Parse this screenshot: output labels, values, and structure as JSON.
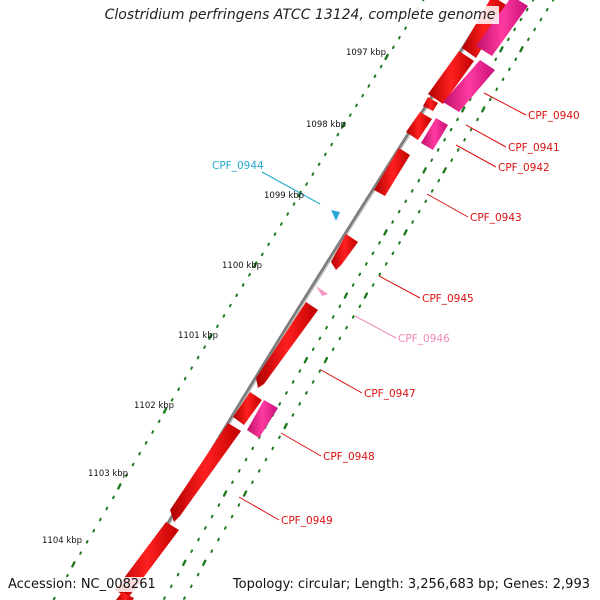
{
  "title": "Clostridium perfringens ATCC 13124, complete genome",
  "footer": {
    "accession": "Accession: NC_008261",
    "stats": "Topology: circular; Length: 3,256,683 bp; Genes: 2,993"
  },
  "colors": {
    "backbone": "#8a8a8a",
    "tick": "#1f7a1f",
    "gene_forward": "#ee1111",
    "gene_pink": "#ee2288",
    "label_red": "#dd1111",
    "label_cyan": "#22aacc",
    "label_pink": "#ee88bb"
  },
  "scale_ticks": [
    {
      "label": "1097 kbp"
    },
    {
      "label": "1098 kbp"
    },
    {
      "label": "1099 kbp"
    },
    {
      "label": "1100 kbp"
    },
    {
      "label": "1101 kbp"
    },
    {
      "label": "1102 kbp"
    },
    {
      "label": "1103 kbp"
    },
    {
      "label": "1104 kbp"
    }
  ],
  "genes": [
    {
      "name": "CPF_0940",
      "color_key": "label_red"
    },
    {
      "name": "CPF_0941",
      "color_key": "label_red"
    },
    {
      "name": "CPF_0942",
      "color_key": "label_red"
    },
    {
      "name": "CPF_0943",
      "color_key": "label_red"
    },
    {
      "name": "CPF_0944",
      "color_key": "label_cyan"
    },
    {
      "name": "CPF_0945",
      "color_key": "label_red"
    },
    {
      "name": "CPF_0946",
      "color_key": "label_pink"
    },
    {
      "name": "CPF_0947",
      "color_key": "label_red"
    },
    {
      "name": "CPF_0948",
      "color_key": "label_red"
    },
    {
      "name": "CPF_0949",
      "color_key": "label_red"
    }
  ]
}
